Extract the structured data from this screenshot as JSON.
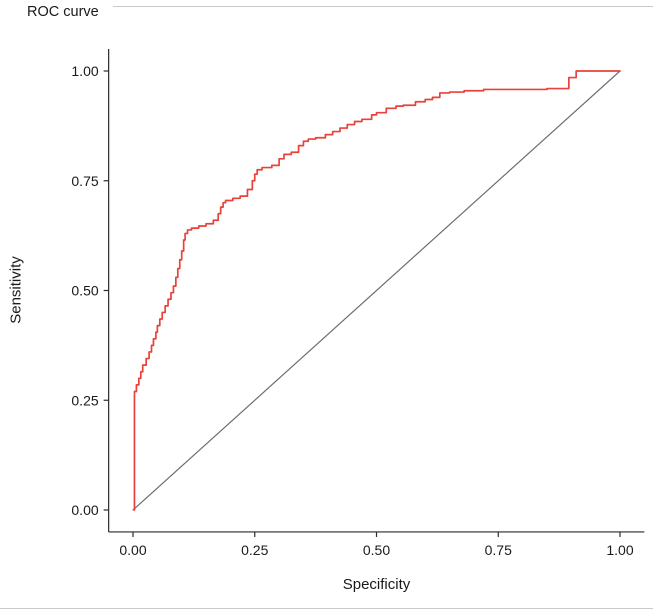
{
  "page": {
    "background": "#ffffff"
  },
  "chart_data": {
    "type": "line",
    "title": "ROC curve",
    "xlabel": "Specificity",
    "ylabel": "Sensitivity",
    "xlim": [
      0,
      1
    ],
    "ylim": [
      0,
      1
    ],
    "x_ticks": [
      "0.00",
      "0.25",
      "0.50",
      "0.75",
      "1.00"
    ],
    "y_ticks": [
      "0.00",
      "0.25",
      "0.50",
      "0.75",
      "1.00"
    ],
    "grid": false,
    "legend": "none",
    "axis_color": "#2a2a2a",
    "text_color": "#1a1a1a",
    "series": [
      {
        "name": "reference-diagonal",
        "color": "#6e6e6e",
        "width": 1.2,
        "step": false,
        "points": [
          [
            0,
            0
          ],
          [
            1,
            1
          ]
        ]
      },
      {
        "name": "roc-curve",
        "color": "#e8423a",
        "width": 1.7,
        "step": true,
        "points": [
          [
            0.003,
            0.0
          ],
          [
            0.003,
            0.255
          ],
          [
            0.007,
            0.27
          ],
          [
            0.012,
            0.285
          ],
          [
            0.016,
            0.3
          ],
          [
            0.02,
            0.315
          ],
          [
            0.027,
            0.33
          ],
          [
            0.033,
            0.345
          ],
          [
            0.038,
            0.36
          ],
          [
            0.042,
            0.375
          ],
          [
            0.047,
            0.39
          ],
          [
            0.05,
            0.405
          ],
          [
            0.055,
            0.42
          ],
          [
            0.06,
            0.435
          ],
          [
            0.066,
            0.45
          ],
          [
            0.072,
            0.465
          ],
          [
            0.078,
            0.48
          ],
          [
            0.083,
            0.495
          ],
          [
            0.088,
            0.51
          ],
          [
            0.092,
            0.53
          ],
          [
            0.096,
            0.55
          ],
          [
            0.1,
            0.57
          ],
          [
            0.104,
            0.59
          ],
          [
            0.107,
            0.615
          ],
          [
            0.112,
            0.63
          ],
          [
            0.12,
            0.638
          ],
          [
            0.135,
            0.642
          ],
          [
            0.15,
            0.647
          ],
          [
            0.165,
            0.652
          ],
          [
            0.175,
            0.66
          ],
          [
            0.18,
            0.675
          ],
          [
            0.185,
            0.69
          ],
          [
            0.19,
            0.7
          ],
          [
            0.205,
            0.705
          ],
          [
            0.22,
            0.71
          ],
          [
            0.235,
            0.715
          ],
          [
            0.245,
            0.73
          ],
          [
            0.25,
            0.75
          ],
          [
            0.255,
            0.765
          ],
          [
            0.265,
            0.775
          ],
          [
            0.285,
            0.78
          ],
          [
            0.3,
            0.785
          ],
          [
            0.31,
            0.8
          ],
          [
            0.325,
            0.81
          ],
          [
            0.34,
            0.815
          ],
          [
            0.35,
            0.83
          ],
          [
            0.36,
            0.84
          ],
          [
            0.375,
            0.845
          ],
          [
            0.395,
            0.848
          ],
          [
            0.41,
            0.855
          ],
          [
            0.425,
            0.862
          ],
          [
            0.44,
            0.87
          ],
          [
            0.455,
            0.878
          ],
          [
            0.47,
            0.885
          ],
          [
            0.49,
            0.89
          ],
          [
            0.5,
            0.9
          ],
          [
            0.52,
            0.905
          ],
          [
            0.54,
            0.915
          ],
          [
            0.555,
            0.92
          ],
          [
            0.58,
            0.922
          ],
          [
            0.6,
            0.93
          ],
          [
            0.615,
            0.935
          ],
          [
            0.63,
            0.94
          ],
          [
            0.65,
            0.95
          ],
          [
            0.68,
            0.952
          ],
          [
            0.72,
            0.955
          ],
          [
            0.75,
            0.958
          ],
          [
            0.8,
            0.958
          ],
          [
            0.85,
            0.958
          ],
          [
            0.895,
            0.96
          ],
          [
            0.91,
            0.985
          ],
          [
            0.925,
            1.0
          ],
          [
            1.0,
            1.0
          ]
        ]
      }
    ]
  }
}
